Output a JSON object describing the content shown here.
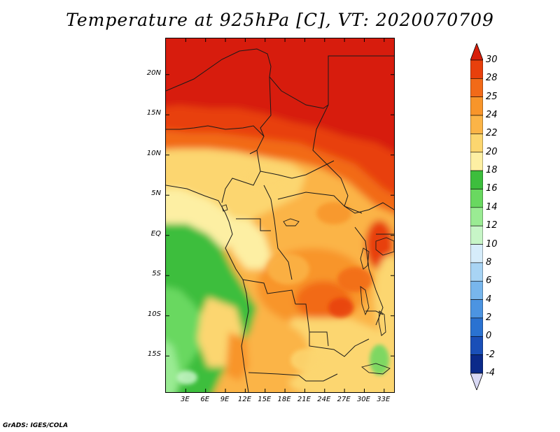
{
  "title": "Temperature at 925hPa [C], VT: 2020070709",
  "footer": "GrADS: IGES/COLA",
  "lat_axis": {
    "labels": [
      "20N",
      "15N",
      "10N",
      "5N",
      "EQ",
      "5S",
      "10S",
      "15S"
    ],
    "values": [
      20,
      15,
      10,
      5,
      0,
      -5,
      -10,
      -15
    ],
    "range": [
      -19.5,
      24.5
    ]
  },
  "lon_axis": {
    "labels": [
      "3E",
      "6E",
      "9E",
      "12E",
      "15E",
      "18E",
      "21E",
      "24E",
      "27E",
      "30E",
      "33E"
    ],
    "values": [
      3,
      6,
      9,
      12,
      15,
      18,
      21,
      24,
      27,
      30,
      33
    ],
    "range": [
      0,
      34.5
    ]
  },
  "colorbar": {
    "labels": [
      "30",
      "28",
      "25",
      "24",
      "22",
      "20",
      "18",
      "16",
      "14",
      "12",
      "10",
      "8",
      "6",
      "4",
      "2",
      "0",
      "-2",
      "-4"
    ],
    "colors": [
      "#d71e0a",
      "#e8400c",
      "#f26a18",
      "#f8952a",
      "#fbb447",
      "#fcd66f",
      "#fdefa3",
      "#3dbe3d",
      "#69d860",
      "#9aeb93",
      "#c7f5c7",
      "#d6ecfa",
      "#a8d4f4",
      "#78b6ec",
      "#4c94e1",
      "#2a72d1",
      "#1a4fb8",
      "#0b2a8a",
      "#060c5a"
    ],
    "top_color": "#d71e0a",
    "bottom_color": "#d8d8f4"
  }
}
